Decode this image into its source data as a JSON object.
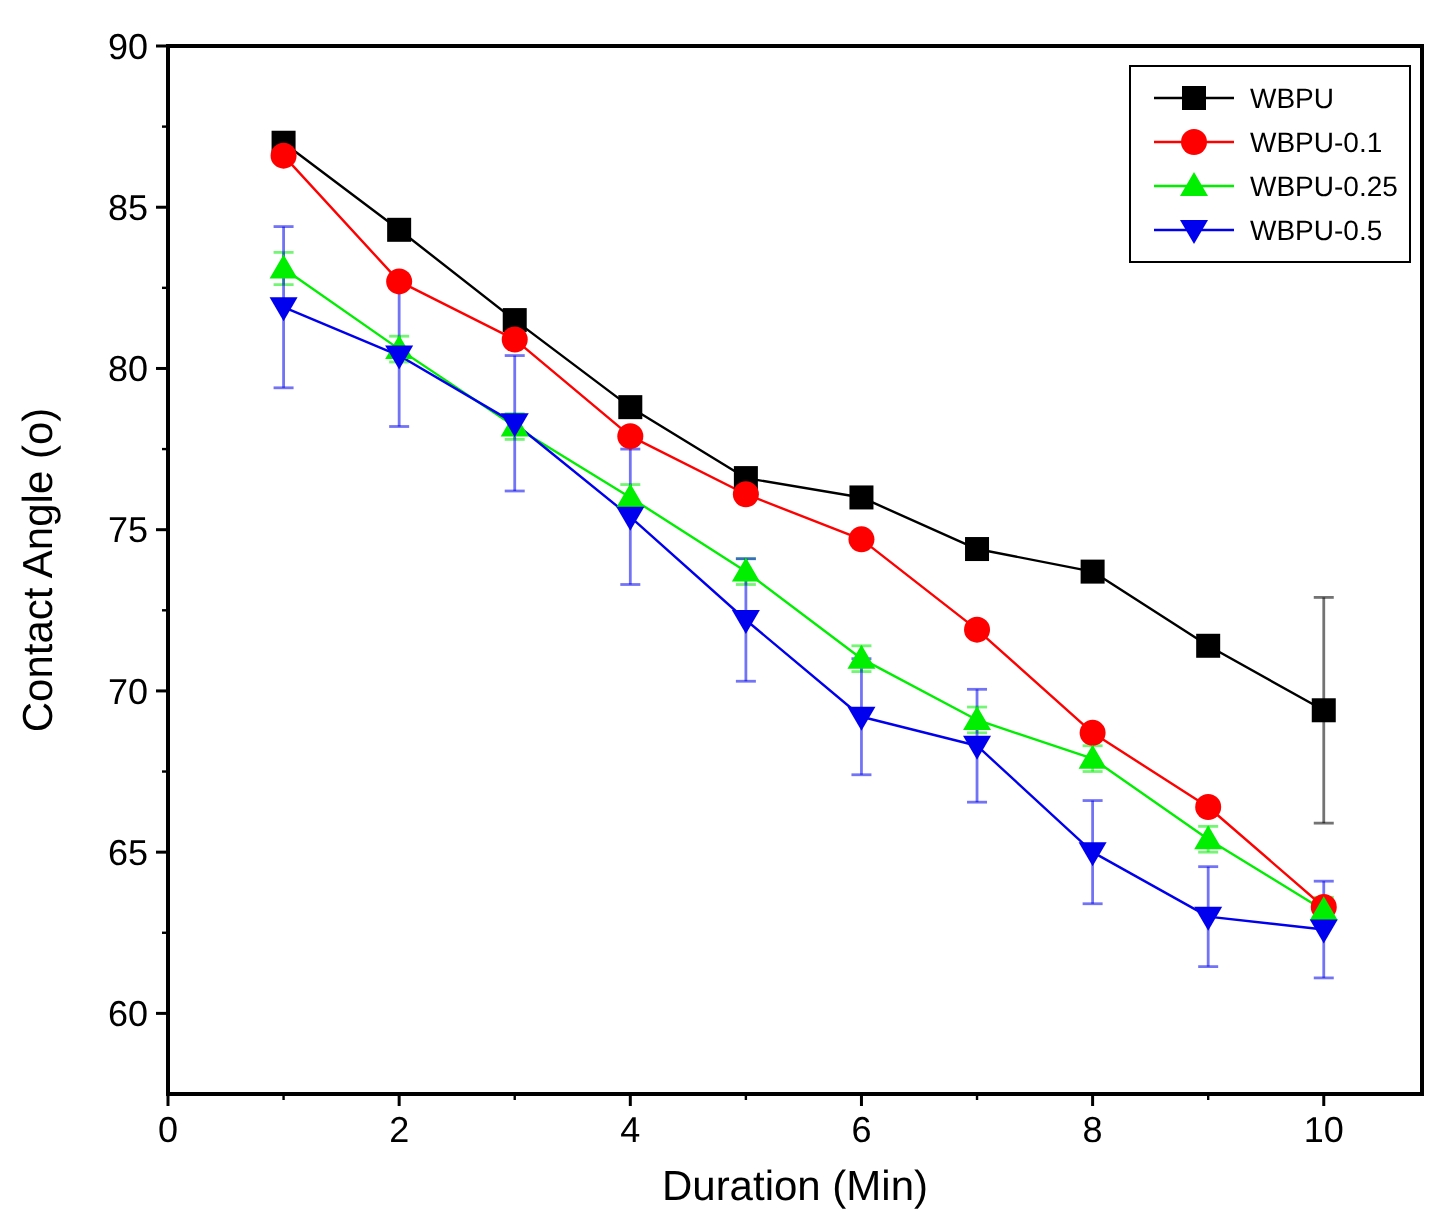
{
  "chart_data": {
    "type": "line",
    "xlabel": "Duration (Min)",
    "ylabel": "Contact Angle (o)",
    "x": [
      1,
      2,
      3,
      4,
      5,
      6,
      7,
      8,
      9,
      10
    ],
    "xlim": [
      0,
      10.85
    ],
    "xticks": [
      0,
      2,
      4,
      6,
      8,
      10
    ],
    "ylim": [
      57.5,
      90
    ],
    "yticks": [
      60,
      65,
      70,
      75,
      80,
      85,
      90
    ],
    "legend": "top right",
    "grid": false,
    "series": [
      {
        "name": "WBPU",
        "color": "#000000",
        "marker": "square",
        "values": [
          87.0,
          84.3,
          81.5,
          78.8,
          76.6,
          76.0,
          74.4,
          73.7,
          71.4,
          69.4
        ],
        "errors": [
          null,
          null,
          null,
          null,
          null,
          null,
          null,
          null,
          null,
          3.5
        ]
      },
      {
        "name": "WBPU-0.1",
        "color": "#ff0000",
        "marker": "circle",
        "values": [
          86.6,
          82.7,
          80.9,
          77.9,
          76.1,
          74.7,
          71.9,
          68.7,
          66.4,
          63.3
        ]
      },
      {
        "name": "WBPU-0.25",
        "color": "#00ee00",
        "marker": "triangle",
        "values": [
          83.1,
          80.6,
          78.2,
          76.0,
          73.7,
          71.0,
          69.1,
          67.9,
          65.4,
          63.2
        ],
        "errors": [
          0.5,
          0.4,
          0.4,
          0.4,
          0.4,
          0.4,
          0.4,
          0.4,
          0.4,
          0.4
        ]
      },
      {
        "name": "WBPU-0.5",
        "color": "#0000ee",
        "marker": "triangle-down",
        "values": [
          81.9,
          80.4,
          78.3,
          75.4,
          72.2,
          69.2,
          68.3,
          65.0,
          63.0,
          62.6
        ],
        "errors": [
          2.5,
          2.2,
          2.1,
          2.1,
          1.9,
          1.8,
          1.75,
          1.6,
          1.55,
          1.5
        ]
      }
    ]
  }
}
